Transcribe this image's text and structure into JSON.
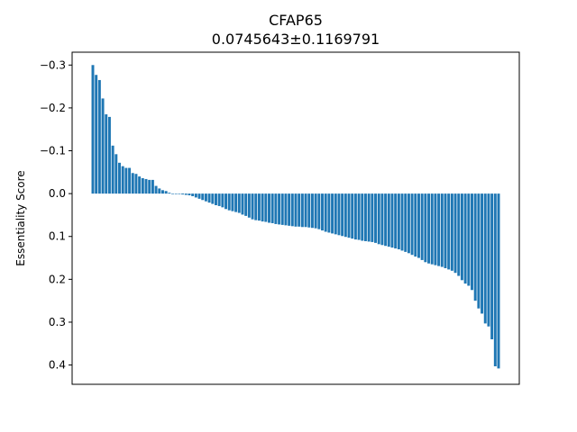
{
  "chart_data": {
    "type": "bar",
    "title": "CFAP65",
    "subtitle": "0.0745643±0.1169791",
    "xlabel": "",
    "ylabel": "Essentiality Score",
    "y_inverted": true,
    "ylim": [
      -0.33,
      0.445
    ],
    "yticks": [
      -0.3,
      -0.2,
      -0.1,
      0.0,
      0.1,
      0.2,
      0.3,
      0.4
    ],
    "ytick_labels": [
      "−0.3",
      "−0.2",
      "−0.1",
      "0.0",
      "0.1",
      "0.2",
      "0.3",
      "0.4"
    ],
    "grid": false,
    "bar_color": "#1f77b4",
    "values": [
      -0.3,
      -0.277,
      -0.265,
      -0.222,
      -0.185,
      -0.179,
      -0.112,
      -0.092,
      -0.072,
      -0.064,
      -0.06,
      -0.06,
      -0.048,
      -0.046,
      -0.04,
      -0.036,
      -0.034,
      -0.032,
      -0.032,
      -0.018,
      -0.012,
      -0.008,
      -0.006,
      -0.002,
      0.0,
      0.0,
      0.001,
      0.002,
      0.003,
      0.004,
      0.006,
      0.009,
      0.012,
      0.015,
      0.018,
      0.021,
      0.024,
      0.027,
      0.029,
      0.032,
      0.036,
      0.039,
      0.041,
      0.043,
      0.045,
      0.049,
      0.052,
      0.056,
      0.06,
      0.062,
      0.063,
      0.065,
      0.066,
      0.068,
      0.069,
      0.071,
      0.072,
      0.073,
      0.074,
      0.075,
      0.076,
      0.077,
      0.077,
      0.078,
      0.078,
      0.079,
      0.08,
      0.081,
      0.083,
      0.086,
      0.089,
      0.091,
      0.093,
      0.095,
      0.097,
      0.099,
      0.101,
      0.103,
      0.105,
      0.107,
      0.108,
      0.11,
      0.111,
      0.112,
      0.113,
      0.115,
      0.118,
      0.12,
      0.122,
      0.124,
      0.126,
      0.128,
      0.13,
      0.133,
      0.136,
      0.139,
      0.143,
      0.147,
      0.15,
      0.155,
      0.16,
      0.163,
      0.165,
      0.167,
      0.169,
      0.171,
      0.174,
      0.177,
      0.18,
      0.185,
      0.192,
      0.202,
      0.21,
      0.215,
      0.225,
      0.25,
      0.268,
      0.28,
      0.303,
      0.31,
      0.34,
      0.403,
      0.408
    ]
  }
}
